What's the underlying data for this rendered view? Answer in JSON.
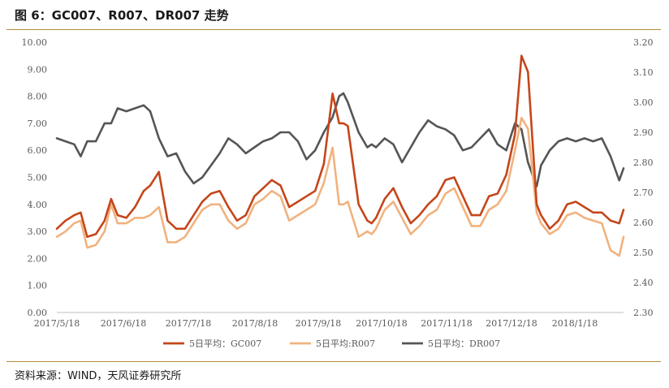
{
  "header": {
    "title": "图 6：GC007、R007、DR007 走势"
  },
  "footer": {
    "source": "资料来源：WIND，天风证券研究所"
  },
  "colors": {
    "rule": "#b78c3c",
    "gc007": "#c5461a",
    "r007": "#f1b27f",
    "dr007": "#555555"
  },
  "chart_data": {
    "type": "line",
    "title": "",
    "x_tick_labels": [
      "2017/5/18",
      "2017/6/18",
      "2017/7/18",
      "2017/8/18",
      "2017/9/18",
      "2017/10/18",
      "2017/11/18",
      "2017/12/18",
      "2018/1/18"
    ],
    "y_left": {
      "ylim": [
        0,
        10
      ],
      "tick_labels": [
        "0.00",
        "1.00",
        "2.00",
        "3.00",
        "4.00",
        "5.00",
        "6.00",
        "7.00",
        "8.00",
        "9.00",
        "10.00"
      ]
    },
    "y_right": {
      "ylim": [
        2.3,
        3.2
      ],
      "tick_labels": [
        "2.30",
        "2.40",
        "2.50",
        "2.60",
        "2.70",
        "2.80",
        "2.90",
        "3.00",
        "3.10",
        "3.20"
      ]
    },
    "grid": false,
    "legend_position": "bottom",
    "series": [
      {
        "name": "5日平均：GC007",
        "axis": "left",
        "color": "#c5461a",
        "x": [
          "2017-05-18",
          "2017-05-22",
          "2017-05-26",
          "2017-05-29",
          "2017-06-01",
          "2017-06-05",
          "2017-06-09",
          "2017-06-12",
          "2017-06-15",
          "2017-06-19",
          "2017-06-23",
          "2017-06-27",
          "2017-06-30",
          "2017-07-04",
          "2017-07-08",
          "2017-07-12",
          "2017-07-16",
          "2017-07-20",
          "2017-07-24",
          "2017-07-28",
          "2017-08-01",
          "2017-08-05",
          "2017-08-09",
          "2017-08-13",
          "2017-08-17",
          "2017-08-21",
          "2017-08-25",
          "2017-08-29",
          "2017-09-02",
          "2017-09-06",
          "2017-09-10",
          "2017-09-14",
          "2017-09-18",
          "2017-09-22",
          "2017-09-25",
          "2017-09-27",
          "2017-09-29",
          "2017-10-04",
          "2017-10-08",
          "2017-10-10",
          "2017-10-12",
          "2017-10-16",
          "2017-10-20",
          "2017-10-24",
          "2017-10-28",
          "2017-11-01",
          "2017-11-05",
          "2017-11-09",
          "2017-11-13",
          "2017-11-17",
          "2017-11-21",
          "2017-11-25",
          "2017-11-29",
          "2017-12-03",
          "2017-12-07",
          "2017-12-11",
          "2017-12-15",
          "2017-12-18",
          "2017-12-21",
          "2017-12-25",
          "2017-12-27",
          "2017-12-31",
          "2018-01-04",
          "2018-01-08",
          "2018-01-12",
          "2018-01-16",
          "2018-01-20",
          "2018-01-24",
          "2018-01-28",
          "2018-02-01",
          "2018-02-03"
        ],
        "y": [
          3.1,
          3.4,
          3.6,
          3.7,
          2.8,
          2.9,
          3.4,
          4.2,
          3.6,
          3.5,
          3.9,
          4.5,
          4.7,
          5.2,
          3.4,
          3.1,
          3.1,
          3.6,
          4.1,
          4.4,
          4.5,
          3.9,
          3.4,
          3.6,
          4.3,
          4.6,
          4.9,
          4.7,
          3.9,
          4.1,
          4.3,
          4.5,
          5.5,
          8.1,
          7.0,
          7.0,
          6.9,
          4.0,
          3.4,
          3.3,
          3.5,
          4.2,
          4.6,
          3.9,
          3.3,
          3.6,
          4.0,
          4.3,
          4.9,
          5.0,
          4.3,
          3.6,
          3.6,
          4.3,
          4.4,
          5.1,
          6.6,
          9.5,
          8.9,
          4.0,
          3.6,
          3.1,
          3.4,
          4.0,
          4.1,
          3.9,
          3.7,
          3.7,
          3.4,
          3.3,
          3.8
        ]
      },
      {
        "name": "5日平均:R007",
        "axis": "left",
        "color": "#f1b27f",
        "x": [
          "2017-05-18",
          "2017-05-22",
          "2017-05-26",
          "2017-05-29",
          "2017-06-01",
          "2017-06-05",
          "2017-06-09",
          "2017-06-12",
          "2017-06-15",
          "2017-06-19",
          "2017-06-23",
          "2017-06-27",
          "2017-06-30",
          "2017-07-04",
          "2017-07-08",
          "2017-07-12",
          "2017-07-16",
          "2017-07-20",
          "2017-07-24",
          "2017-07-28",
          "2017-08-01",
          "2017-08-05",
          "2017-08-09",
          "2017-08-13",
          "2017-08-17",
          "2017-08-21",
          "2017-08-25",
          "2017-08-29",
          "2017-09-02",
          "2017-09-06",
          "2017-09-10",
          "2017-09-14",
          "2017-09-18",
          "2017-09-22",
          "2017-09-25",
          "2017-09-27",
          "2017-09-29",
          "2017-10-04",
          "2017-10-08",
          "2017-10-10",
          "2017-10-12",
          "2017-10-16",
          "2017-10-20",
          "2017-10-24",
          "2017-10-28",
          "2017-11-01",
          "2017-11-05",
          "2017-11-09",
          "2017-11-13",
          "2017-11-17",
          "2017-11-21",
          "2017-11-25",
          "2017-11-29",
          "2017-12-03",
          "2017-12-07",
          "2017-12-11",
          "2017-12-15",
          "2017-12-18",
          "2017-12-21",
          "2017-12-25",
          "2017-12-27",
          "2017-12-31",
          "2018-01-04",
          "2018-01-08",
          "2018-01-12",
          "2018-01-16",
          "2018-01-20",
          "2018-01-24",
          "2018-01-28",
          "2018-02-01",
          "2018-02-03"
        ],
        "y": [
          2.8,
          3.0,
          3.3,
          3.4,
          2.4,
          2.5,
          3.0,
          4.0,
          3.3,
          3.3,
          3.5,
          3.5,
          3.6,
          3.9,
          2.6,
          2.6,
          2.8,
          3.3,
          3.8,
          4.0,
          4.0,
          3.4,
          3.1,
          3.3,
          4.0,
          4.2,
          4.5,
          4.3,
          3.4,
          3.6,
          3.8,
          4.0,
          4.8,
          6.1,
          4.0,
          4.0,
          4.1,
          2.8,
          3.0,
          2.9,
          3.1,
          3.8,
          4.1,
          3.5,
          2.9,
          3.2,
          3.6,
          3.8,
          4.4,
          4.6,
          3.9,
          3.2,
          3.2,
          3.8,
          4.0,
          4.5,
          6.0,
          7.2,
          6.8,
          3.7,
          3.3,
          2.9,
          3.1,
          3.6,
          3.7,
          3.5,
          3.4,
          3.3,
          2.3,
          2.1,
          2.8
        ]
      },
      {
        "name": "5日平均：DR007",
        "axis": "right",
        "color": "#555555",
        "x": [
          "2017-05-18",
          "2017-05-22",
          "2017-05-26",
          "2017-05-29",
          "2017-06-01",
          "2017-06-05",
          "2017-06-09",
          "2017-06-12",
          "2017-06-15",
          "2017-06-19",
          "2017-06-23",
          "2017-06-27",
          "2017-06-30",
          "2017-07-04",
          "2017-07-08",
          "2017-07-12",
          "2017-07-16",
          "2017-07-20",
          "2017-07-24",
          "2017-07-28",
          "2017-08-01",
          "2017-08-05",
          "2017-08-09",
          "2017-08-13",
          "2017-08-17",
          "2017-08-21",
          "2017-08-25",
          "2017-08-29",
          "2017-09-02",
          "2017-09-06",
          "2017-09-10",
          "2017-09-14",
          "2017-09-18",
          "2017-09-22",
          "2017-09-25",
          "2017-09-27",
          "2017-09-29",
          "2017-10-04",
          "2017-10-08",
          "2017-10-10",
          "2017-10-12",
          "2017-10-16",
          "2017-10-20",
          "2017-10-24",
          "2017-10-28",
          "2017-11-01",
          "2017-11-05",
          "2017-11-09",
          "2017-11-13",
          "2017-11-17",
          "2017-11-21",
          "2017-11-25",
          "2017-11-29",
          "2017-12-03",
          "2017-12-07",
          "2017-12-11",
          "2017-12-15",
          "2017-12-18",
          "2017-12-21",
          "2017-12-25",
          "2017-12-27",
          "2017-12-31",
          "2018-01-04",
          "2018-01-08",
          "2018-01-12",
          "2018-01-16",
          "2018-01-20",
          "2018-01-24",
          "2018-01-28",
          "2018-02-01",
          "2018-02-03"
        ],
        "y": [
          2.88,
          2.87,
          2.86,
          2.82,
          2.87,
          2.87,
          2.93,
          2.93,
          2.98,
          2.97,
          2.98,
          2.99,
          2.97,
          2.88,
          2.82,
          2.83,
          2.77,
          2.73,
          2.75,
          2.79,
          2.83,
          2.88,
          2.86,
          2.83,
          2.85,
          2.87,
          2.88,
          2.9,
          2.9,
          2.87,
          2.81,
          2.84,
          2.9,
          2.95,
          3.02,
          3.03,
          3.0,
          2.9,
          2.85,
          2.86,
          2.85,
          2.88,
          2.86,
          2.8,
          2.85,
          2.9,
          2.94,
          2.92,
          2.91,
          2.89,
          2.84,
          2.85,
          2.88,
          2.91,
          2.86,
          2.84,
          2.93,
          2.91,
          2.8,
          2.72,
          2.79,
          2.84,
          2.87,
          2.88,
          2.87,
          2.88,
          2.87,
          2.88,
          2.82,
          2.74,
          2.78
        ]
      }
    ]
  }
}
